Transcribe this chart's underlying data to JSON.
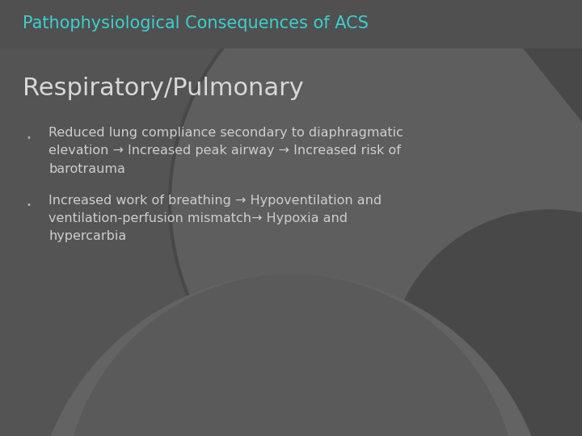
{
  "title": "Pathophysiological Consequences of ACS",
  "title_color": "#3ECFCF",
  "title_fontsize": 15,
  "section_heading": "Respiratory/Pulmonary",
  "section_heading_color": "#D8D8D8",
  "section_heading_fontsize": 22,
  "bg_color": "#545454",
  "circle_color": "#5E5E5E",
  "circle_outline": "#484848",
  "dark_shape_color": "#484848",
  "bottom_gray": "#636363",
  "text_color": "#CECECE",
  "bullet_color": "#AAAAAA",
  "bullet1_line1": "Reduced lung compliance secondary to diaphragmatic",
  "bullet1_line2": "elevation → Increased peak airway → Increased risk of",
  "bullet1_line3": "barotrauma",
  "bullet2_line1": "Increased work of breathing → Hypoventilation and",
  "bullet2_line2": "ventilation-perfusion mismatch→ Hypoxia and",
  "bullet2_line3": "hypercarbia",
  "text_fontsize": 11.5,
  "figsize": [
    7.2,
    5.4
  ],
  "dpi": 100
}
